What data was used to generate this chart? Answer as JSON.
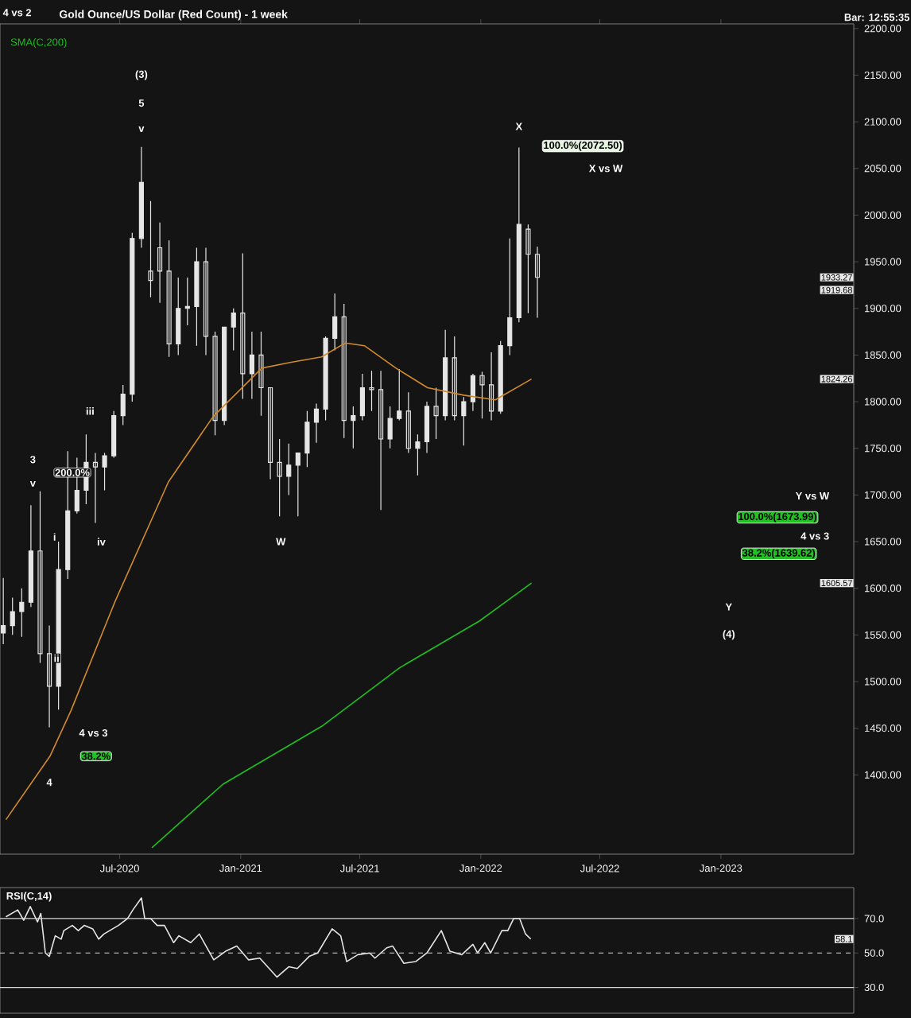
{
  "chart_data": [
    {
      "type": "candlestick",
      "title": "Gold Ounce/US Dollar (Red Count) - 1 week",
      "color": "#e6e6e6",
      "x": [
        "2020-01-06",
        "2020-01-20",
        "2020-02-03",
        "2020-02-17",
        "2020-03-02",
        "2020-03-16",
        "2020-03-30",
        "2020-04-13",
        "2020-04-27",
        "2020-05-11",
        "2020-05-25",
        "2020-06-08",
        "2020-06-22",
        "2020-07-06",
        "2020-07-20",
        "2020-08-03",
        "2020-08-17",
        "2020-08-31",
        "2020-09-14",
        "2020-09-28",
        "2020-10-12",
        "2020-10-26",
        "2020-11-09",
        "2020-11-23",
        "2020-12-07",
        "2020-12-21",
        "2021-01-04",
        "2021-01-18",
        "2021-02-01",
        "2021-02-15",
        "2021-03-01",
        "2021-03-15",
        "2021-03-29",
        "2021-04-12",
        "2021-04-26",
        "2021-05-10",
        "2021-05-24",
        "2021-06-07",
        "2021-06-21",
        "2021-07-05",
        "2021-07-19",
        "2021-08-02",
        "2021-08-16",
        "2021-08-30",
        "2021-09-13",
        "2021-09-27",
        "2021-10-11",
        "2021-10-25",
        "2021-11-08",
        "2021-11-22",
        "2021-12-06",
        "2021-12-20",
        "2022-01-03",
        "2022-01-17",
        "2022-01-31",
        "2022-02-14",
        "2022-02-28",
        "2022-03-14",
        "2022-03-28"
      ],
      "ohlc": [
        [
          1552,
          1611,
          1540,
          1560
        ],
        [
          1560,
          1590,
          1550,
          1575
        ],
        [
          1575,
          1600,
          1548,
          1585
        ],
        [
          1585,
          1689,
          1580,
          1640
        ],
        [
          1640,
          1704,
          1520,
          1530
        ],
        [
          1530,
          1560,
          1451,
          1495
        ],
        [
          1495,
          1650,
          1470,
          1620
        ],
        [
          1620,
          1747,
          1610,
          1683
        ],
        [
          1683,
          1740,
          1680,
          1705
        ],
        [
          1705,
          1765,
          1690,
          1735
        ],
        [
          1735,
          1745,
          1670,
          1730
        ],
        [
          1730,
          1745,
          1705,
          1742
        ],
        [
          1742,
          1790,
          1740,
          1785
        ],
        [
          1785,
          1818,
          1775,
          1808
        ],
        [
          1808,
          1981,
          1800,
          1975
        ],
        [
          1975,
          2073,
          1965,
          2035
        ],
        [
          1940,
          2015,
          1912,
          1930
        ],
        [
          1965,
          1992,
          1906,
          1940
        ],
        [
          1940,
          1973,
          1848,
          1862
        ],
        [
          1862,
          1933,
          1850,
          1900
        ],
        [
          1900,
          1933,
          1882,
          1902
        ],
        [
          1902,
          1965,
          1860,
          1950
        ],
        [
          1950,
          1965,
          1850,
          1870
        ],
        [
          1870,
          1875,
          1764,
          1780
        ],
        [
          1780,
          1880,
          1775,
          1880
        ],
        [
          1880,
          1900,
          1855,
          1895
        ],
        [
          1895,
          1959,
          1803,
          1830
        ],
        [
          1830,
          1875,
          1803,
          1850
        ],
        [
          1850,
          1875,
          1785,
          1815
        ],
        [
          1815,
          1815,
          1717,
          1735
        ],
        [
          1735,
          1760,
          1677,
          1720
        ],
        [
          1720,
          1755,
          1700,
          1732
        ],
        [
          1732,
          1745,
          1677,
          1745
        ],
        [
          1745,
          1790,
          1730,
          1778
        ],
        [
          1778,
          1798,
          1756,
          1792
        ],
        [
          1792,
          1870,
          1780,
          1868
        ],
        [
          1868,
          1916,
          1855,
          1891
        ],
        [
          1891,
          1905,
          1761,
          1780
        ],
        [
          1780,
          1795,
          1750,
          1785
        ],
        [
          1785,
          1830,
          1780,
          1815
        ],
        [
          1815,
          1833,
          1790,
          1813
        ],
        [
          1813,
          1833,
          1684,
          1760
        ],
        [
          1760,
          1795,
          1750,
          1782
        ],
        [
          1782,
          1835,
          1780,
          1790
        ],
        [
          1790,
          1810,
          1745,
          1750
        ],
        [
          1750,
          1765,
          1721,
          1757
        ],
        [
          1757,
          1800,
          1745,
          1795
        ],
        [
          1795,
          1815,
          1760,
          1785
        ],
        [
          1785,
          1877,
          1780,
          1847
        ],
        [
          1847,
          1870,
          1780,
          1785
        ],
        [
          1785,
          1805,
          1753,
          1800
        ],
        [
          1800,
          1830,
          1790,
          1828
        ],
        [
          1828,
          1832,
          1782,
          1818
        ],
        [
          1818,
          1853,
          1780,
          1790
        ],
        [
          1790,
          1865,
          1787,
          1860
        ],
        [
          1860,
          1975,
          1850,
          1890
        ],
        [
          1890,
          2072.5,
          1885,
          1990
        ],
        [
          1985,
          1990,
          1895,
          1958
        ],
        [
          1958,
          1966,
          1890,
          1933.27
        ]
      ],
      "series": [
        {
          "type": "line",
          "color": "#d08a2a",
          "x": [
            "2020-01-10",
            "2020-03-17",
            "2020-04-18",
            "2020-06-24",
            "2020-09-13",
            "2020-11-20",
            "2021-02-02",
            "2021-03-17",
            "2021-05-04",
            "2021-06-09",
            "2021-07-08",
            "2021-08-25",
            "2021-10-12",
            "2021-12-06",
            "2022-01-23",
            "2022-03-19"
          ],
          "values": [
            1352,
            1420,
            1469,
            1586,
            1714,
            1784,
            1836,
            1842,
            1848,
            1863,
            1860,
            1836,
            1815,
            1807,
            1802,
            1824.26
          ]
        },
        {
          "type": "line",
          "name": "SMA(C,200)",
          "color": "#1fbf1f",
          "x": [
            "2020-08-19",
            "2020-12-05",
            "2021-05-04",
            "2021-08-31",
            "2021-12-30",
            "2022-03-19"
          ],
          "values": [
            1322,
            1390,
            1452,
            1515,
            1565,
            1605.57
          ]
        }
      ],
      "legend": "top left",
      "xlim": [
        "2020-01-01",
        "2023-07-22"
      ],
      "xticks": [
        {
          "value": "2020-07-01",
          "label": "Jul-2020"
        },
        {
          "value": "2021-01-01",
          "label": "Jan-2021"
        },
        {
          "value": "2021-07-01",
          "label": "Jul-2021"
        },
        {
          "value": "2022-01-01",
          "label": "Jan-2022"
        },
        {
          "value": "2022-07-01",
          "label": "Jul-2022"
        },
        {
          "value": "2023-01-01",
          "label": "Jan-2023"
        }
      ],
      "ylim": [
        1315,
        2205
      ],
      "yticks": [
        {
          "value": 1400,
          "label": "1400.00"
        },
        {
          "value": 1450,
          "label": "1450.00"
        },
        {
          "value": 1500,
          "label": "1500.00"
        },
        {
          "value": 1550,
          "label": "1550.00"
        },
        {
          "value": 1600,
          "label": "1600.00"
        },
        {
          "value": 1650,
          "label": "1650.00"
        },
        {
          "value": 1700,
          "label": "1700.00"
        },
        {
          "value": 1750,
          "label": "1750.00"
        },
        {
          "value": 1800,
          "label": "1800.00"
        },
        {
          "value": 1850,
          "label": "1850.00"
        },
        {
          "value": 1900,
          "label": "1900.00"
        },
        {
          "value": 1950,
          "label": "1950.00"
        },
        {
          "value": 2000,
          "label": "2000.00"
        },
        {
          "value": 2050,
          "label": "2050.00"
        },
        {
          "value": 2100,
          "label": "2100.00"
        },
        {
          "value": 2150,
          "label": "2150.00"
        },
        {
          "value": 2200,
          "label": "2200.00"
        }
      ],
      "annotations": [
        "4 vs 2",
        "Bar: 12:55:35",
        "(3)",
        "5",
        "v",
        "3",
        "v",
        "200.0%",
        "i",
        "ii",
        "iii",
        "iv",
        "4",
        "4 vs 3",
        "38.2%",
        "W",
        "X",
        "100.0%(2072.50)",
        "X vs W",
        "Y vs W",
        "100.0%(1673.99)",
        "4 vs 3",
        "38.2%(1639.62)",
        "Y",
        "(4)",
        "1919.68",
        "1933.27",
        "1824.26",
        "1605.57"
      ]
    },
    {
      "type": "line",
      "title": "RSI(C,14)",
      "series": [
        {
          "color": "#e6e6e6",
          "x": [
            "2020-01-10",
            "2020-01-28",
            "2020-02-06",
            "2020-02-16",
            "2020-02-27",
            "2020-03-03",
            "2020-03-10",
            "2020-03-16",
            "2020-03-25",
            "2020-04-03",
            "2020-04-07",
            "2020-04-20",
            "2020-04-29",
            "2020-05-08",
            "2020-05-21",
            "2020-05-30",
            "2020-06-07",
            "2020-06-29",
            "2020-07-13",
            "2020-07-21",
            "2020-08-03",
            "2020-08-08",
            "2020-08-17",
            "2020-08-27",
            "2020-09-07",
            "2020-09-21",
            "2020-09-29",
            "2020-10-17",
            "2020-10-30",
            "2020-11-21",
            "2020-12-09",
            "2020-12-26",
            "2021-01-13",
            "2021-01-30",
            "2021-02-25",
            "2021-03-15",
            "2021-03-28",
            "2021-04-15",
            "2021-04-28",
            "2021-05-20",
            "2021-06-02",
            "2021-06-11",
            "2021-06-28",
            "2021-07-16",
            "2021-07-24",
            "2021-08-11",
            "2021-08-20",
            "2021-09-06",
            "2021-09-24",
            "2021-10-11",
            "2021-11-02",
            "2021-11-15",
            "2021-12-03",
            "2021-12-20",
            "2021-12-27",
            "2022-01-07",
            "2022-01-16",
            "2022-02-02",
            "2022-02-11",
            "2022-02-20",
            "2022-03-01",
            "2022-03-10",
            "2022-03-18"
          ],
          "values": [
            71,
            75,
            69,
            77,
            68,
            73,
            50,
            48,
            60,
            58,
            63,
            66,
            63,
            66,
            64,
            58,
            61,
            66,
            70,
            75,
            82,
            70,
            70,
            66,
            66,
            56,
            60,
            56,
            61,
            46,
            51,
            54,
            46,
            47,
            36,
            42,
            41,
            48,
            50,
            64,
            60,
            45,
            49,
            50,
            47,
            53,
            54,
            44,
            45,
            50,
            63,
            51,
            49,
            55,
            50,
            56,
            50,
            63,
            63,
            70,
            70,
            61,
            58.1
          ]
        }
      ],
      "xlim": [
        "2020-01-01",
        "2023-07-22"
      ],
      "ylim": [
        15,
        88
      ],
      "yticks": [
        {
          "value": 30,
          "label": "30.0"
        },
        {
          "value": 50,
          "label": "50.0"
        },
        {
          "value": 70,
          "label": "70.0"
        }
      ],
      "tick_labels": "y",
      "ref_lines": [
        {
          "axis": "y",
          "value": 70,
          "color": "#d9d9d9",
          "line_style": "solid"
        },
        {
          "axis": "y",
          "value": 50,
          "color": "#d9d9d9",
          "line_style": "dashed"
        },
        {
          "axis": "y",
          "value": 30,
          "color": "#d9d9d9",
          "line_style": "solid"
        }
      ],
      "annotations": [
        "58.1"
      ]
    }
  ]
}
